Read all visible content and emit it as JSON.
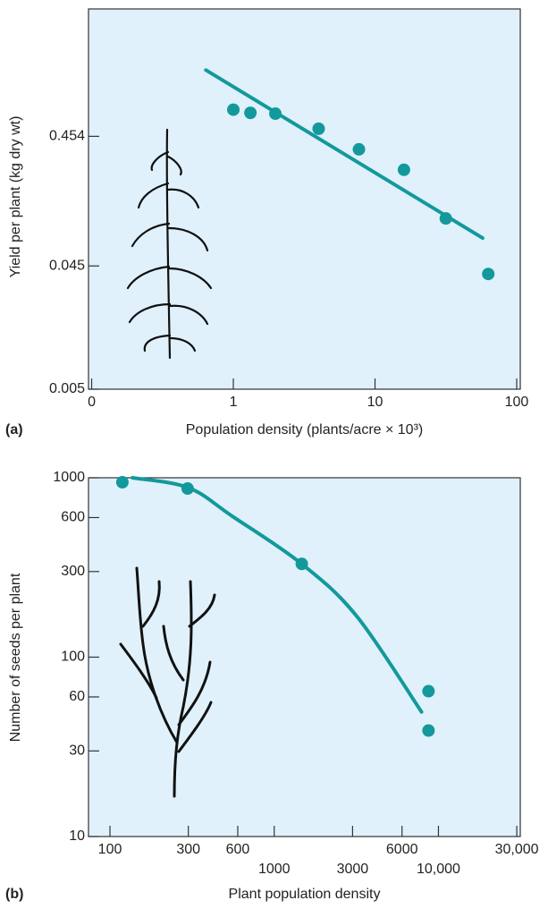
{
  "chart_data": [
    {
      "type": "scatter",
      "panel_label": "(a)",
      "x_label": "Population density (plants/acre × 10³)",
      "y_label": "Yield per plant (kg dry wt)",
      "log_x": true,
      "log_y": true,
      "xlim": [
        0.095,
        106
      ],
      "ylim": [
        0.005,
        4.4
      ],
      "xticks": [
        {
          "value": 0.1,
          "label": "0"
        },
        1,
        10,
        100
      ],
      "yticks": [
        0.005,
        0.045,
        0.454
      ],
      "series": [
        {
          "type": "scatter",
          "color": "#13999b",
          "x": [
            1,
            1.32,
            1.98,
            4.0,
            7.7,
            16,
            31.6,
            63
          ],
          "values": [
            0.73,
            0.69,
            0.68,
            0.52,
            0.36,
            0.25,
            0.105,
            0.039
          ]
        },
        {
          "type": "line",
          "color": "#13999b",
          "x": [
            0.64,
            57.5
          ],
          "values": [
            1.48,
            0.074
          ]
        }
      ]
    },
    {
      "type": "scatter",
      "panel_label": "(b)",
      "x_label": "Plant population density",
      "y_label": "Number of seeds per plant",
      "log_x": true,
      "log_y": true,
      "xlim": [
        74,
        31500
      ],
      "ylim": [
        10,
        1000
      ],
      "xticks": [
        100,
        300,
        600,
        1000,
        3000,
        6000,
        {
          "value": 10000,
          "label": "10,000"
        },
        {
          "value": 30000,
          "label": "30,000"
        }
      ],
      "yticks": [
        10,
        30,
        60,
        100,
        300,
        600,
        1000
      ],
      "series": [
        {
          "type": "scatter",
          "color": "#13999b",
          "x": [
            119,
            297,
            1472,
            8700,
            8700
          ],
          "values": [
            944,
            871,
            331,
            64.6,
            39
          ]
        },
        {
          "type": "line",
          "color": "#13999b",
          "x": [
            137,
            300,
            556,
            1470,
            3200,
            7890
          ],
          "values": [
            1000,
            880,
            610,
            331,
            168,
            49.5
          ]
        }
      ]
    }
  ]
}
